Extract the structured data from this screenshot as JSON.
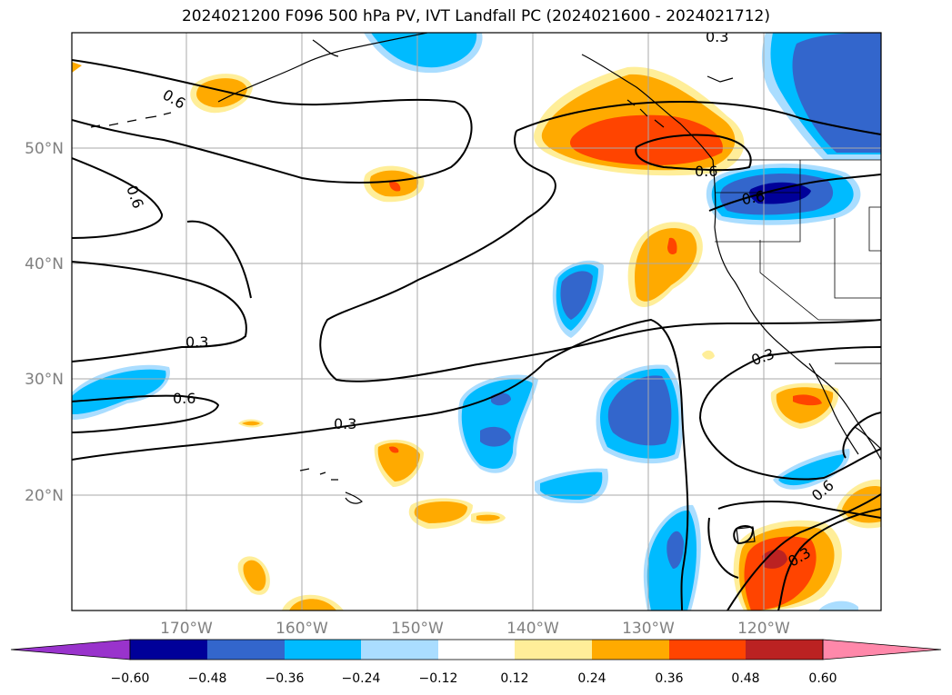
{
  "title": "2024021200 F096 500 hPa PV, IVT Landfall PC (2024021600 - 2024021712)",
  "map": {
    "lon_labels": [
      "170°W",
      "160°W",
      "150°W",
      "140°W",
      "130°W",
      "120°W"
    ],
    "lat_labels": [
      "50°N",
      "40°N",
      "30°N",
      "20°N"
    ]
  },
  "colorbar": {
    "labels": [
      "−0.60",
      "−0.48",
      "−0.36",
      "−0.24",
      "−0.12",
      "0.12",
      "0.24",
      "0.36",
      "0.48",
      "0.60"
    ],
    "colors": [
      "#9933cc",
      "#000099",
      "#3366cc",
      "#00bbff",
      "#aaddff",
      "#ffffff",
      "#ffee99",
      "#ffaa00",
      "#ff4400",
      "#bb2222",
      "#ff88aa"
    ]
  },
  "contour_labels": [
    "0.6",
    "0.6",
    "0.3",
    "0.6",
    "0.3",
    "0.6",
    "0.3",
    "0.3",
    "0.3",
    "0.6",
    "0.3"
  ]
}
